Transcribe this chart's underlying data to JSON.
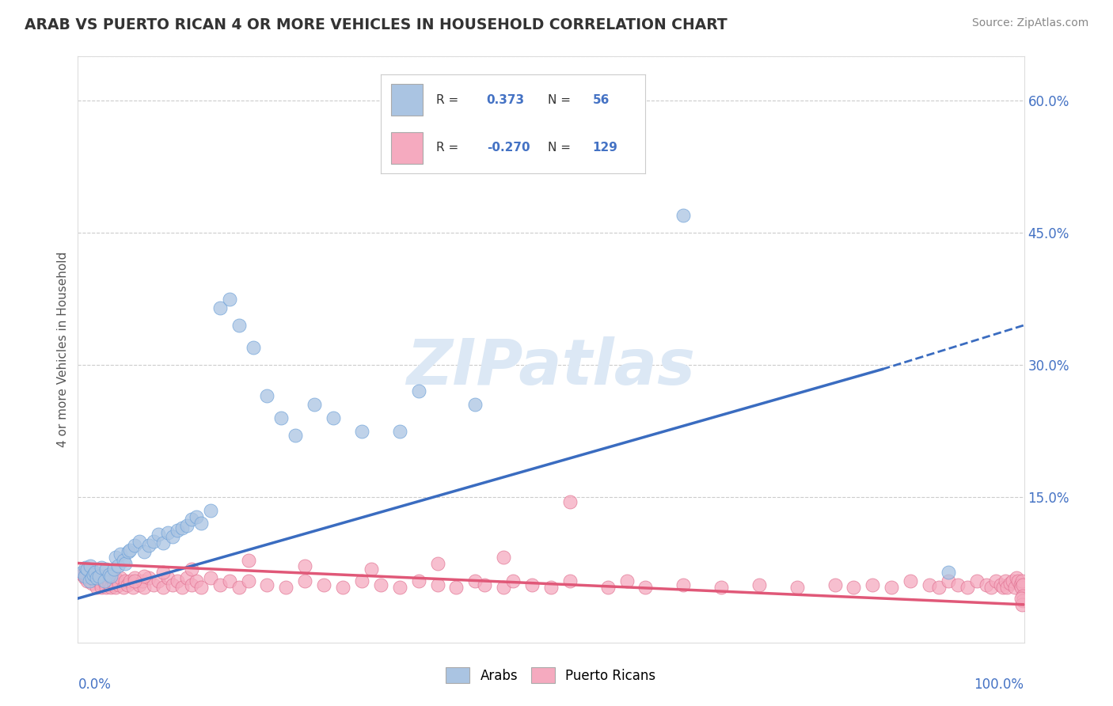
{
  "title": "ARAB VS PUERTO RICAN 4 OR MORE VEHICLES IN HOUSEHOLD CORRELATION CHART",
  "source": "Source: ZipAtlas.com",
  "ylabel": "4 or more Vehicles in Household",
  "yticks": [
    0.0,
    0.15,
    0.3,
    0.45,
    0.6
  ],
  "ytick_labels": [
    "",
    "15.0%",
    "30.0%",
    "45.0%",
    "60.0%"
  ],
  "xlim": [
    0.0,
    1.0
  ],
  "ylim": [
    -0.015,
    0.65
  ],
  "arab_R": 0.373,
  "arab_N": 56,
  "puerto_rican_R": -0.27,
  "puerto_rican_N": 129,
  "arab_color": "#aac4e2",
  "arab_edge_color": "#6a9fd8",
  "arab_line_color": "#3a6cc0",
  "puerto_rican_color": "#f5aabf",
  "puerto_rican_edge_color": "#e07090",
  "puerto_rican_line_color": "#e05878",
  "watermark_text": "ZIPatlas",
  "watermark_color": "#dce8f5",
  "background_color": "#ffffff",
  "grid_color": "#cccccc",
  "title_color": "#333333",
  "source_color": "#888888",
  "axis_label_color": "#555555",
  "tick_color": "#4472c4",
  "arab_line_x0": 0.0,
  "arab_line_y0": 0.035,
  "arab_line_x1": 0.85,
  "arab_line_y1": 0.295,
  "arab_line_dash_x1": 1.0,
  "arab_line_dash_y1": 0.345,
  "pr_line_x0": 0.0,
  "pr_line_y0": 0.075,
  "pr_line_x1": 1.0,
  "pr_line_y1": 0.028,
  "arab_points_x": [
    0.005,
    0.007,
    0.008,
    0.01,
    0.012,
    0.013,
    0.015,
    0.016,
    0.018,
    0.02,
    0.022,
    0.025,
    0.028,
    0.03,
    0.033,
    0.035,
    0.038,
    0.04,
    0.042,
    0.045,
    0.048,
    0.05,
    0.053,
    0.055,
    0.06,
    0.065,
    0.07,
    0.075,
    0.08,
    0.085,
    0.09,
    0.095,
    0.1,
    0.105,
    0.11,
    0.115,
    0.12,
    0.125,
    0.13,
    0.14,
    0.15,
    0.16,
    0.17,
    0.185,
    0.2,
    0.215,
    0.23,
    0.25,
    0.27,
    0.3,
    0.34,
    0.36,
    0.42,
    0.47,
    0.64,
    0.92
  ],
  "arab_points_y": [
    0.065,
    0.06,
    0.07,
    0.068,
    0.055,
    0.072,
    0.058,
    0.062,
    0.065,
    0.058,
    0.06,
    0.07,
    0.055,
    0.068,
    0.062,
    0.06,
    0.068,
    0.082,
    0.072,
    0.085,
    0.078,
    0.075,
    0.088,
    0.09,
    0.095,
    0.1,
    0.088,
    0.095,
    0.1,
    0.108,
    0.098,
    0.11,
    0.105,
    0.112,
    0.115,
    0.118,
    0.125,
    0.128,
    0.12,
    0.135,
    0.365,
    0.375,
    0.345,
    0.32,
    0.265,
    0.24,
    0.22,
    0.255,
    0.24,
    0.225,
    0.225,
    0.27,
    0.255,
    0.545,
    0.47,
    0.065
  ],
  "pr_points_x": [
    0.005,
    0.007,
    0.008,
    0.009,
    0.01,
    0.01,
    0.012,
    0.013,
    0.014,
    0.015,
    0.015,
    0.016,
    0.017,
    0.018,
    0.019,
    0.02,
    0.02,
    0.022,
    0.023,
    0.024,
    0.025,
    0.025,
    0.027,
    0.028,
    0.03,
    0.03,
    0.032,
    0.033,
    0.035,
    0.035,
    0.037,
    0.038,
    0.04,
    0.04,
    0.042,
    0.043,
    0.045,
    0.048,
    0.05,
    0.052,
    0.055,
    0.058,
    0.06,
    0.065,
    0.068,
    0.07,
    0.075,
    0.08,
    0.085,
    0.09,
    0.095,
    0.1,
    0.105,
    0.11,
    0.115,
    0.12,
    0.125,
    0.13,
    0.14,
    0.15,
    0.16,
    0.17,
    0.18,
    0.2,
    0.22,
    0.24,
    0.26,
    0.28,
    0.3,
    0.32,
    0.34,
    0.36,
    0.38,
    0.4,
    0.42,
    0.43,
    0.45,
    0.46,
    0.48,
    0.5,
    0.52,
    0.56,
    0.58,
    0.6,
    0.64,
    0.68,
    0.72,
    0.76,
    0.8,
    0.82,
    0.84,
    0.86,
    0.88,
    0.9,
    0.91,
    0.92,
    0.93,
    0.94,
    0.95,
    0.96,
    0.965,
    0.97,
    0.975,
    0.978,
    0.98,
    0.982,
    0.985,
    0.988,
    0.99,
    0.992,
    0.994,
    0.996,
    0.997,
    0.998,
    0.999,
    0.999,
    0.999,
    0.998,
    0.997,
    0.52,
    0.45,
    0.38,
    0.31,
    0.24,
    0.18,
    0.12,
    0.09,
    0.07,
    0.06
  ],
  "pr_points_y": [
    0.062,
    0.058,
    0.065,
    0.06,
    0.068,
    0.055,
    0.062,
    0.058,
    0.065,
    0.06,
    0.052,
    0.065,
    0.058,
    0.055,
    0.062,
    0.058,
    0.048,
    0.06,
    0.055,
    0.052,
    0.058,
    0.048,
    0.06,
    0.053,
    0.058,
    0.048,
    0.055,
    0.05,
    0.058,
    0.048,
    0.055,
    0.05,
    0.058,
    0.048,
    0.055,
    0.05,
    0.058,
    0.048,
    0.055,
    0.05,
    0.055,
    0.048,
    0.058,
    0.05,
    0.055,
    0.048,
    0.058,
    0.05,
    0.055,
    0.048,
    0.058,
    0.05,
    0.055,
    0.048,
    0.058,
    0.05,
    0.055,
    0.048,
    0.058,
    0.05,
    0.055,
    0.048,
    0.055,
    0.05,
    0.048,
    0.055,
    0.05,
    0.048,
    0.055,
    0.05,
    0.048,
    0.055,
    0.05,
    0.048,
    0.055,
    0.05,
    0.048,
    0.055,
    0.05,
    0.048,
    0.055,
    0.048,
    0.055,
    0.048,
    0.05,
    0.048,
    0.05,
    0.048,
    0.05,
    0.048,
    0.05,
    0.048,
    0.055,
    0.05,
    0.048,
    0.055,
    0.05,
    0.048,
    0.055,
    0.05,
    0.048,
    0.055,
    0.05,
    0.048,
    0.055,
    0.048,
    0.052,
    0.055,
    0.048,
    0.058,
    0.055,
    0.05,
    0.048,
    0.055,
    0.05,
    0.038,
    0.032,
    0.028,
    0.035,
    0.145,
    0.082,
    0.075,
    0.068,
    0.072,
    0.078,
    0.068,
    0.065,
    0.06,
    0.055
  ]
}
